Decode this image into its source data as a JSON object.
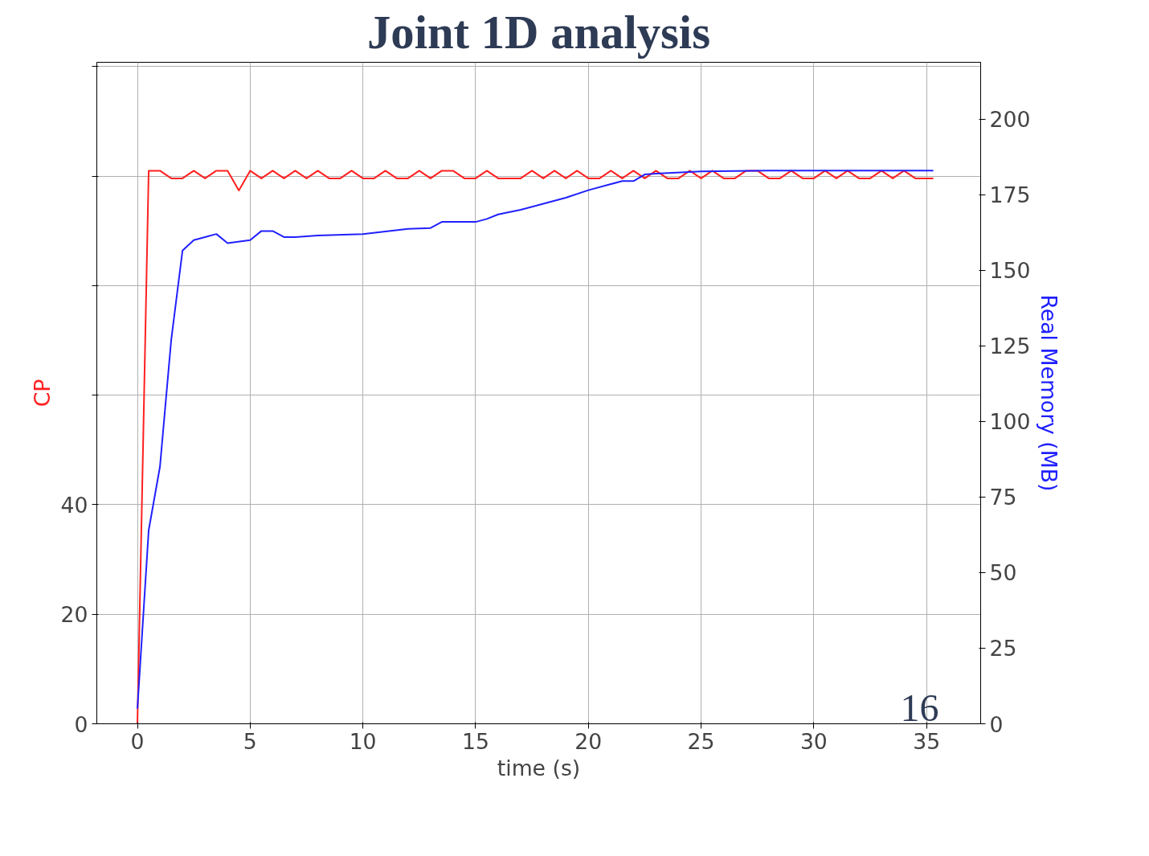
{
  "chart_data": {
    "type": "line",
    "title": "Joint 1D analysis",
    "xlabel": "time (s)",
    "ylabel": "CP",
    "y2label": "Real Memory (MB)",
    "xlim": [
      -1.8,
      37.4
    ],
    "xticks": [
      0,
      5,
      10,
      15,
      20,
      25,
      30,
      35
    ],
    "ylim": [
      0,
      120.8
    ],
    "yticks": [
      0,
      20,
      40,
      {
        "value": 60,
        "label": null
      },
      {
        "value": 80,
        "label": null
      },
      {
        "value": 100,
        "label": null
      },
      {
        "value": 120,
        "label": null
      }
    ],
    "y2lim": [
      0,
      218.8
    ],
    "y2ticks": [
      0,
      25,
      50,
      75,
      100,
      125,
      150,
      175,
      200
    ],
    "grid": true,
    "line_style": "solid",
    "marker": "none",
    "annotations": [
      "16"
    ],
    "series": [
      {
        "color": "#ff2020",
        "x": [
          0,
          0.5,
          1,
          1.5,
          2,
          2.5,
          3,
          3.5,
          4,
          4.5,
          5,
          5.5,
          6,
          6.5,
          7,
          7.5,
          8,
          8.5,
          9,
          9.5,
          10,
          10.5,
          11,
          11.5,
          12,
          12.5,
          13,
          13.5,
          14,
          14.5,
          15,
          15.5,
          16,
          16.5,
          17,
          17.5,
          18,
          18.5,
          19,
          19.5,
          20,
          20.5,
          21,
          21.5,
          22,
          22.5,
          23,
          23.5,
          24,
          24.5,
          25,
          25.5,
          26,
          26.5,
          27,
          27.5,
          28,
          28.5,
          29,
          29.5,
          30,
          30.5,
          31,
          31.5,
          32,
          32.5,
          33,
          33.5,
          34,
          34.5,
          35.3
        ],
        "values": [
          0,
          101,
          101,
          99.6,
          99.6,
          101,
          99.6,
          101,
          101,
          97.4,
          101,
          99.6,
          101,
          99.6,
          101,
          99.6,
          101,
          99.6,
          99.6,
          101,
          99.6,
          99.6,
          101,
          99.6,
          99.6,
          101,
          99.6,
          101,
          101,
          99.6,
          99.6,
          101,
          99.6,
          99.6,
          99.6,
          101,
          99.6,
          101,
          99.6,
          101,
          99.6,
          99.6,
          101,
          99.6,
          101,
          99.6,
          101,
          99.6,
          99.6,
          101,
          99.6,
          101,
          99.6,
          99.6,
          101,
          101,
          99.6,
          99.6,
          101,
          99.6,
          99.6,
          101,
          99.6,
          101,
          99.6,
          99.6,
          101,
          99.6,
          101,
          99.6,
          99.6
        ]
      },
      {
        "color": "#2020ff",
        "axis": "y2",
        "x": [
          0,
          0.5,
          1,
          1.5,
          2,
          2.5,
          3,
          3.5,
          4,
          5,
          5.5,
          6,
          6.5,
          7,
          8,
          10,
          12,
          13,
          13.5,
          15,
          15.5,
          16,
          17,
          18,
          19,
          20,
          21,
          21.5,
          22,
          22.5,
          23,
          25,
          28,
          35.3
        ],
        "values": [
          5,
          64,
          85,
          127,
          156.5,
          160,
          161,
          162,
          159,
          160,
          163,
          163,
          161,
          161,
          161.5,
          162,
          163.7,
          164,
          166,
          166,
          167,
          168.5,
          170,
          172,
          174,
          176.5,
          178.5,
          179.5,
          179.5,
          181.7,
          182,
          182.7,
          183,
          183
        ]
      }
    ]
  }
}
